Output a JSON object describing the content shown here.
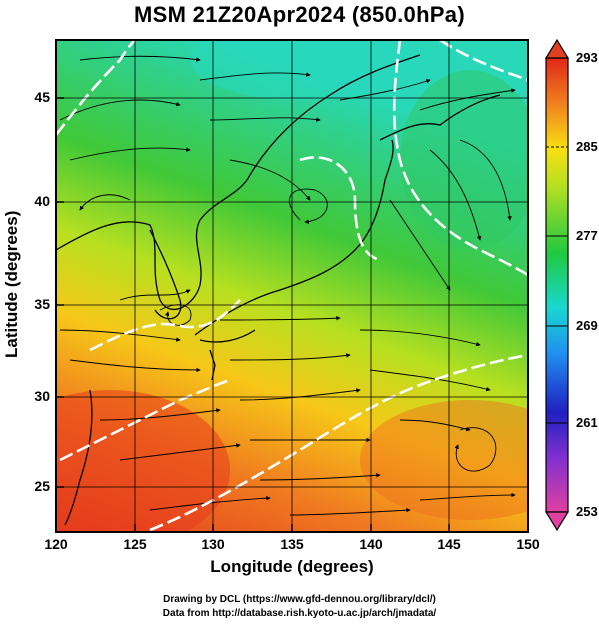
{
  "title": "MSM 21Z20Apr2024 (850.0hPa)",
  "xlabel": "Longitude (degrees)",
  "ylabel": "Latitude  (degrees)",
  "xticks": [
    "120",
    "125",
    "130",
    "135",
    "140",
    "145",
    "150"
  ],
  "yticks": [
    "25",
    "30",
    "35",
    "40",
    "45"
  ],
  "colorbar": {
    "labels": [
      "293",
      "285",
      "277",
      "269",
      "261",
      "253"
    ],
    "min": 253,
    "max": 293,
    "colors": [
      "#e0409a",
      "#2a1ac8",
      "#2aa0f0",
      "#18d8c8",
      "#28c828",
      "#b0e020",
      "#f8e010",
      "#f08020",
      "#e82818"
    ]
  },
  "credits": {
    "line1": "Drawing by DCL (https://www.gfd-dennou.org/library/dcl/)",
    "line2": "Data from http://database.rish.kyoto-u.ac.jp/arch/jmadata/"
  },
  "map": {
    "extent": {
      "lon": [
        120,
        150
      ],
      "lat": [
        22.5,
        47.5
      ]
    },
    "contours": [
      "",
      "",
      "",
      "",
      "",
      ""
    ]
  }
}
